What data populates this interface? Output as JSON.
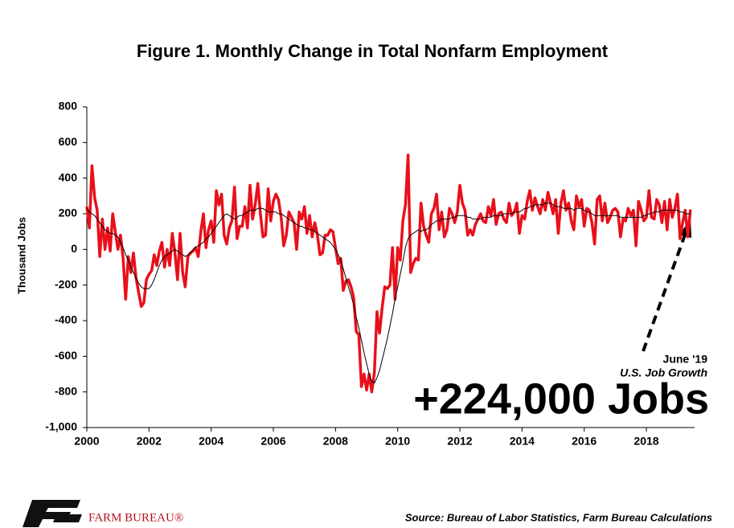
{
  "chart_data": {
    "type": "line",
    "title": "Figure 1. Monthly Change in Total Nonfarm Employment",
    "y_label": "Thousand Jobs",
    "annotation_date": "June '19",
    "annotation_caption": "U.S. Job Growth",
    "annotation_value": "+224,000 Jobs",
    "source": "Source: Bureau of Labor Statistics, Farm Bureau Calculations",
    "brand": "FARM BUREAU®",
    "ylim": [
      -1000,
      800
    ],
    "yticks": [
      {
        "value": -1000,
        "label": "-1,000"
      },
      -800,
      -600,
      -400,
      -200,
      0,
      200,
      400,
      600,
      800
    ],
    "grid": false,
    "categories": [
      "2000",
      null,
      null,
      null,
      null,
      null,
      null,
      null,
      null,
      null,
      null,
      null,
      null,
      null,
      null,
      null,
      null,
      null,
      null,
      null,
      null,
      null,
      null,
      null,
      "2002",
      null,
      null,
      null,
      null,
      null,
      null,
      null,
      null,
      null,
      null,
      null,
      null,
      null,
      null,
      null,
      null,
      null,
      null,
      null,
      null,
      null,
      null,
      null,
      "2004",
      null,
      null,
      null,
      null,
      null,
      null,
      null,
      null,
      null,
      null,
      null,
      null,
      null,
      null,
      null,
      null,
      null,
      null,
      null,
      null,
      null,
      null,
      null,
      "2006",
      null,
      null,
      null,
      null,
      null,
      null,
      null,
      null,
      null,
      null,
      null,
      null,
      null,
      null,
      null,
      null,
      null,
      null,
      null,
      null,
      null,
      null,
      null,
      "2008",
      null,
      null,
      null,
      null,
      null,
      null,
      null,
      null,
      null,
      null,
      null,
      null,
      null,
      null,
      null,
      null,
      null,
      null,
      null,
      null,
      null,
      null,
      null,
      "2010",
      null,
      null,
      null,
      null,
      null,
      null,
      null,
      null,
      null,
      null,
      null,
      null,
      null,
      null,
      null,
      null,
      null,
      null,
      null,
      null,
      null,
      null,
      null,
      "2012",
      null,
      null,
      null,
      null,
      null,
      null,
      null,
      null,
      null,
      null,
      null,
      null,
      null,
      null,
      null,
      null,
      null,
      null,
      null,
      null,
      null,
      null,
      null,
      "2014",
      null,
      null,
      null,
      null,
      null,
      null,
      null,
      null,
      null,
      null,
      null,
      null,
      null,
      null,
      null,
      null,
      null,
      null,
      null,
      null,
      null,
      null,
      null,
      "2016",
      null,
      null,
      null,
      null,
      null,
      null,
      null,
      null,
      null,
      null,
      null,
      null,
      null,
      null,
      null,
      null,
      null,
      null,
      null,
      null,
      null,
      null,
      null,
      "2018",
      null,
      null,
      null,
      null,
      null,
      null,
      null,
      null,
      null,
      null,
      null,
      null,
      null,
      null,
      null,
      null,
      null
    ],
    "series": [
      {
        "color": "#e8101a",
        "width": 3.5,
        "values": [
          240,
          120,
          470,
          290,
          220,
          -40,
          170,
          0,
          120,
          -10,
          200,
          100,
          0,
          80,
          -50,
          -280,
          -40,
          -130,
          -20,
          -160,
          -240,
          -320,
          -300,
          -170,
          -140,
          -120,
          -30,
          -90,
          -10,
          40,
          -100,
          0,
          -90,
          90,
          -20,
          -170,
          90,
          -130,
          -210,
          -40,
          -20,
          -10,
          10,
          -40,
          100,
          200,
          10,
          110,
          160,
          40,
          330,
          250,
          310,
          80,
          30,
          120,
          160,
          350,
          60,
          130,
          130,
          240,
          120,
          360,
          170,
          250,
          370,
          200,
          70,
          80,
          340,
          160,
          270,
          310,
          280,
          180,
          20,
          80,
          210,
          180,
          150,
          0,
          210,
          170,
          240,
          90,
          190,
          70,
          150,
          80,
          -30,
          -20,
          80,
          80,
          110,
          100,
          10,
          -80,
          -50,
          -230,
          -180,
          -170,
          -210,
          -270,
          -460,
          -480,
          -770,
          -700,
          -790,
          -700,
          -800,
          -690,
          -350,
          -470,
          -330,
          -210,
          -220,
          -200,
          10,
          -280,
          10,
          -60,
          160,
          250,
          530,
          -130,
          -80,
          -50,
          -60,
          260,
          130,
          80,
          40,
          200,
          230,
          310,
          110,
          210,
          70,
          110,
          230,
          200,
          150,
          210,
          360,
          260,
          220,
          80,
          110,
          80,
          140,
          170,
          200,
          160,
          150,
          240,
          190,
          280,
          140,
          200,
          210,
          170,
          150,
          260,
          190,
          210,
          260,
          90,
          190,
          170,
          270,
          330,
          220,
          290,
          240,
          200,
          280,
          220,
          320,
          260,
          200,
          280,
          90,
          260,
          330,
          220,
          260,
          160,
          110,
          300,
          240,
          280,
          130,
          230,
          220,
          150,
          30,
          280,
          300,
          160,
          260,
          150,
          180,
          220,
          230,
          210,
          70,
          170,
          160,
          230,
          190,
          220,
          20,
          270,
          220,
          160,
          180,
          330,
          180,
          170,
          280,
          250,
          150,
          270,
          110,
          280,
          180,
          230,
          310,
          60,
          150,
          220,
          70,
          224
        ]
      },
      {
        "color": "#000000",
        "width": 1,
        "values": [
          230,
          210,
          200,
          190,
          170,
          150,
          130,
          110,
          100,
          90,
          90,
          80,
          70,
          40,
          10,
          -30,
          -60,
          -100,
          -130,
          -160,
          -190,
          -210,
          -220,
          -220,
          -220,
          -200,
          -170,
          -130,
          -90,
          -60,
          -40,
          -30,
          -20,
          -10,
          0,
          -10,
          -20,
          -30,
          -40,
          -30,
          -20,
          0,
          10,
          20,
          30,
          40,
          60,
          70,
          90,
          110,
          130,
          150,
          170,
          190,
          200,
          190,
          180,
          170,
          180,
          190,
          190,
          200,
          210,
          220,
          220,
          220,
          230,
          230,
          230,
          220,
          210,
          210,
          210,
          210,
          200,
          200,
          190,
          180,
          170,
          160,
          150,
          140,
          130,
          130,
          120,
          120,
          110,
          110,
          100,
          90,
          80,
          70,
          60,
          50,
          40,
          20,
          0,
          -30,
          -60,
          -110,
          -160,
          -210,
          -260,
          -310,
          -380,
          -440,
          -510,
          -580,
          -640,
          -700,
          -740,
          -750,
          -720,
          -680,
          -620,
          -560,
          -500,
          -430,
          -360,
          -280,
          -210,
          -140,
          -70,
          10,
          60,
          80,
          90,
          100,
          110,
          100,
          110,
          110,
          120,
          140,
          150,
          160,
          160,
          170,
          170,
          170,
          170,
          180,
          180,
          190,
          190,
          190,
          190,
          180,
          180,
          170,
          170,
          170,
          170,
          180,
          180,
          180,
          180,
          190,
          190,
          190,
          190,
          200,
          200,
          200,
          200,
          210,
          210,
          210,
          220,
          230,
          230,
          240,
          240,
          250,
          250,
          250,
          250,
          260,
          260,
          260,
          250,
          240,
          240,
          240,
          230,
          230,
          230,
          230,
          220,
          230,
          230,
          230,
          220,
          210,
          210,
          200,
          190,
          190,
          190,
          190,
          190,
          190,
          190,
          190,
          190,
          190,
          180,
          180,
          180,
          180,
          180,
          180,
          180,
          180,
          180,
          190,
          190,
          200,
          200,
          210,
          210,
          210,
          220,
          220,
          220,
          220,
          220,
          220,
          220,
          210,
          210,
          200,
          200,
          200
        ]
      }
    ]
  }
}
